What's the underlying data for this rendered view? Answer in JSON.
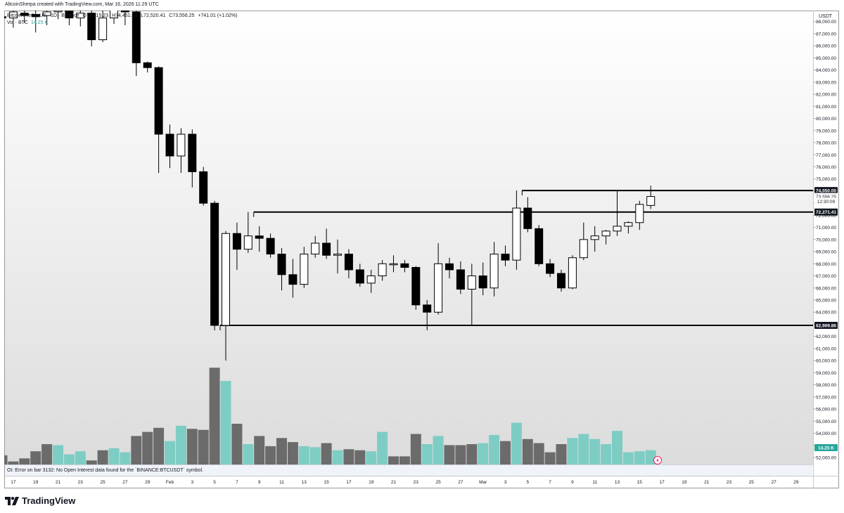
{
  "header": {
    "creator_text": "AltcoinSherpa created with TradingView.com, Mar 16, 2026 11:29 UTC",
    "symbol_text": "Bitcoin / TetherUS · 1D · Binance",
    "ohlc": {
      "open": "O72,815.23",
      "high": "H74,451.03",
      "low": "L72,520.41",
      "close": "C73,556.25",
      "change": "+741.01 (+1.02%)"
    },
    "volume_label": "Vol · BTC",
    "volume_value": "14.25 K"
  },
  "axis": {
    "currency": "USDT"
  },
  "status": {
    "error_text": "OI: Error on bar 3132: No Open Interest data found for the `BINANCE:BTCUSDT` symbol."
  },
  "footer": {
    "brand": "TradingView"
  },
  "colors": {
    "up_body": "#ffffff",
    "down_body": "#000000",
    "volume_up": "#7ecdc4",
    "volume_down": "#6b6b6b",
    "accent_teal": "#26a69a",
    "label_bg": "#131722"
  },
  "chart_data": {
    "type": "candlestick",
    "symbol": "BTCUSDT",
    "interval": "1D",
    "y_axis_ticks": [
      "52,000.00",
      "53,000.00",
      "54,000.00",
      "55,000.00",
      "56,000.00",
      "57,000.00",
      "58,000.00",
      "59,000.00",
      "60,000.00",
      "61,000.00",
      "62,000.00",
      "63,000.00",
      "64,000.00",
      "65,000.00",
      "66,000.00",
      "67,000.00",
      "68,000.00",
      "69,000.00",
      "70,000.00",
      "71,000.00",
      "72,000.00",
      "73,000.00",
      "74,000.00",
      "75,000.00",
      "76,000.00",
      "77,000.00",
      "78,000.00",
      "79,000.00",
      "80,000.00",
      "81,000.00",
      "82,000.00",
      "83,000.00",
      "84,000.00",
      "85,000.00",
      "86,000.00",
      "87,000.00",
      "88,000.00"
    ],
    "x_axis_ticks": [
      "17",
      "19",
      "21",
      "23",
      "25",
      "27",
      "29",
      "Feb",
      "3",
      "5",
      "7",
      "9",
      "11",
      "13",
      "15",
      "17",
      "19",
      "21",
      "23",
      "25",
      "27",
      "Mar",
      "3",
      "5",
      "7",
      "9",
      "11",
      "13",
      "15",
      "17",
      "19",
      "21",
      "23",
      "25",
      "27",
      "29"
    ],
    "price_labels": [
      {
        "text": "74,050.00",
        "value": 74050,
        "style": "line"
      },
      {
        "text": "73,556.25",
        "value": 73556.25,
        "style": "last"
      },
      {
        "text": "12:30:09",
        "value": 73150,
        "style": "countdown"
      },
      {
        "text": "72,271.41",
        "value": 72271.41,
        "style": "line"
      },
      {
        "text": "62,909.86",
        "value": 62909.86,
        "style": "line"
      }
    ],
    "volume_label": "14.25 K",
    "horizontal_lines": [
      {
        "value": 74050,
        "from_day": 47
      },
      {
        "value": 72271.41,
        "from_day": 23
      },
      {
        "value": 62909.86,
        "from_day": 20
      }
    ],
    "candles": [
      {
        "o": 88400,
        "h": 89000,
        "l": 86800,
        "c": 88300
      },
      {
        "o": 88300,
        "h": 89100,
        "l": 87500,
        "c": 88800
      },
      {
        "o": 88700,
        "h": 89300,
        "l": 87900,
        "c": 88500
      },
      {
        "o": 88600,
        "h": 89400,
        "l": 87100,
        "c": 88400
      },
      {
        "o": 88500,
        "h": 89600,
        "l": 87700,
        "c": 88800
      },
      {
        "o": 88800,
        "h": 89500,
        "l": 88200,
        "c": 88900
      },
      {
        "o": 88900,
        "h": 89300,
        "l": 87700,
        "c": 88300
      },
      {
        "o": 88300,
        "h": 89000,
        "l": 87600,
        "c": 88700
      },
      {
        "o": 88700,
        "h": 89200,
        "l": 85950,
        "c": 86500
      },
      {
        "o": 86500,
        "h": 89000,
        "l": 86300,
        "c": 88300
      },
      {
        "o": 88300,
        "h": 89800,
        "l": 87800,
        "c": 89300
      },
      {
        "o": 89000,
        "h": 89700,
        "l": 87700,
        "c": 88800
      },
      {
        "o": 88800,
        "h": 89000,
        "l": 83500,
        "c": 84600
      },
      {
        "o": 84600,
        "h": 84700,
        "l": 83800,
        "c": 84200
      },
      {
        "o": 84200,
        "h": 84300,
        "l": 75500,
        "c": 78700
      },
      {
        "o": 78700,
        "h": 79500,
        "l": 75900,
        "c": 76900
      },
      {
        "o": 76900,
        "h": 79200,
        "l": 75500,
        "c": 78700
      },
      {
        "o": 78700,
        "h": 79100,
        "l": 74300,
        "c": 75600
      },
      {
        "o": 75600,
        "h": 76000,
        "l": 72800,
        "c": 73000
      },
      {
        "o": 73000,
        "h": 73200,
        "l": 62500,
        "c": 62909
      },
      {
        "o": 62909,
        "h": 70700,
        "l": 60000,
        "c": 70500
      },
      {
        "o": 70500,
        "h": 71400,
        "l": 67500,
        "c": 69200
      },
      {
        "o": 69200,
        "h": 72270,
        "l": 68900,
        "c": 70300
      },
      {
        "o": 70300,
        "h": 71100,
        "l": 69000,
        "c": 70100
      },
      {
        "o": 70100,
        "h": 70500,
        "l": 68500,
        "c": 68800
      },
      {
        "o": 68800,
        "h": 69300,
        "l": 65800,
        "c": 67100
      },
      {
        "o": 67100,
        "h": 68400,
        "l": 65200,
        "c": 66300
      },
      {
        "o": 66300,
        "h": 69400,
        "l": 66000,
        "c": 68800
      },
      {
        "o": 68800,
        "h": 70300,
        "l": 68500,
        "c": 69700
      },
      {
        "o": 69700,
        "h": 70900,
        "l": 68400,
        "c": 68700
      },
      {
        "o": 68700,
        "h": 70000,
        "l": 67200,
        "c": 68800
      },
      {
        "o": 68800,
        "h": 69200,
        "l": 66800,
        "c": 67500
      },
      {
        "o": 67500,
        "h": 68000,
        "l": 66100,
        "c": 66400
      },
      {
        "o": 66400,
        "h": 67500,
        "l": 65600,
        "c": 67000
      },
      {
        "o": 67000,
        "h": 68300,
        "l": 66600,
        "c": 68000
      },
      {
        "o": 68000,
        "h": 68700,
        "l": 67300,
        "c": 68000
      },
      {
        "o": 68000,
        "h": 68300,
        "l": 67300,
        "c": 67700
      },
      {
        "o": 67700,
        "h": 67800,
        "l": 64200,
        "c": 64600
      },
      {
        "o": 64600,
        "h": 65000,
        "l": 62500,
        "c": 64000
      },
      {
        "o": 64000,
        "h": 69700,
        "l": 63800,
        "c": 68000
      },
      {
        "o": 68000,
        "h": 68500,
        "l": 66800,
        "c": 67500
      },
      {
        "o": 67500,
        "h": 68200,
        "l": 65500,
        "c": 65900
      },
      {
        "o": 65900,
        "h": 68000,
        "l": 62900,
        "c": 67000
      },
      {
        "o": 67000,
        "h": 68100,
        "l": 65400,
        "c": 66000
      },
      {
        "o": 66000,
        "h": 69800,
        "l": 65300,
        "c": 68800
      },
      {
        "o": 68800,
        "h": 69500,
        "l": 67800,
        "c": 68300
      },
      {
        "o": 68300,
        "h": 74050,
        "l": 67500,
        "c": 72600
      },
      {
        "o": 72600,
        "h": 73500,
        "l": 70600,
        "c": 70900
      },
      {
        "o": 70900,
        "h": 71200,
        "l": 67800,
        "c": 68000
      },
      {
        "o": 68000,
        "h": 68400,
        "l": 66900,
        "c": 67200
      },
      {
        "o": 67200,
        "h": 67500,
        "l": 65700,
        "c": 66000
      },
      {
        "o": 66000,
        "h": 68700,
        "l": 65900,
        "c": 68500
      },
      {
        "o": 68500,
        "h": 71400,
        "l": 68300,
        "c": 70000
      },
      {
        "o": 70000,
        "h": 71100,
        "l": 69000,
        "c": 70300
      },
      {
        "o": 70300,
        "h": 70800,
        "l": 69600,
        "c": 70700
      },
      {
        "o": 70700,
        "h": 74000,
        "l": 70300,
        "c": 71100
      },
      {
        "o": 71100,
        "h": 71500,
        "l": 70500,
        "c": 71400
      },
      {
        "o": 71400,
        "h": 73200,
        "l": 70800,
        "c": 72900
      },
      {
        "o": 72815,
        "h": 74451,
        "l": 72520,
        "c": 73556
      }
    ],
    "volumes": [
      {
        "v": 0.9,
        "up": false
      },
      {
        "v": 0.3,
        "up": false
      },
      {
        "v": 0.6,
        "up": false
      },
      {
        "v": 1.3,
        "up": false
      },
      {
        "v": 2.0,
        "up": false
      },
      {
        "v": 1.9,
        "up": true
      },
      {
        "v": 1.0,
        "up": true
      },
      {
        "v": 1.3,
        "up": true
      },
      {
        "v": 0.4,
        "up": false
      },
      {
        "v": 1.4,
        "up": false
      },
      {
        "v": 1.6,
        "up": true
      },
      {
        "v": 1.2,
        "up": true
      },
      {
        "v": 2.8,
        "up": false
      },
      {
        "v": 3.2,
        "up": false
      },
      {
        "v": 3.6,
        "up": false
      },
      {
        "v": 2.3,
        "up": true
      },
      {
        "v": 3.8,
        "up": true
      },
      {
        "v": 3.5,
        "up": false
      },
      {
        "v": 3.4,
        "up": false
      },
      {
        "v": 9.5,
        "up": false
      },
      {
        "v": 8.2,
        "up": true
      },
      {
        "v": 4.0,
        "up": false
      },
      {
        "v": 2.0,
        "up": true
      },
      {
        "v": 2.8,
        "up": false
      },
      {
        "v": 1.8,
        "up": false
      },
      {
        "v": 2.6,
        "up": false
      },
      {
        "v": 2.2,
        "up": false
      },
      {
        "v": 1.8,
        "up": true
      },
      {
        "v": 1.7,
        "up": true
      },
      {
        "v": 2.1,
        "up": false
      },
      {
        "v": 1.4,
        "up": true
      },
      {
        "v": 1.5,
        "up": false
      },
      {
        "v": 1.4,
        "up": false
      },
      {
        "v": 1.3,
        "up": true
      },
      {
        "v": 3.2,
        "up": true
      },
      {
        "v": 0.8,
        "up": false
      },
      {
        "v": 0.8,
        "up": false
      },
      {
        "v": 3.0,
        "up": false
      },
      {
        "v": 2.0,
        "up": true
      },
      {
        "v": 2.8,
        "up": true
      },
      {
        "v": 1.9,
        "up": false
      },
      {
        "v": 1.9,
        "up": false
      },
      {
        "v": 2.0,
        "up": false
      },
      {
        "v": 2.1,
        "up": true
      },
      {
        "v": 2.9,
        "up": true
      },
      {
        "v": 2.3,
        "up": false
      },
      {
        "v": 4.1,
        "up": true
      },
      {
        "v": 2.5,
        "up": false
      },
      {
        "v": 2.1,
        "up": false
      },
      {
        "v": 1.2,
        "up": false
      },
      {
        "v": 2.0,
        "up": false
      },
      {
        "v": 2.6,
        "up": true
      },
      {
        "v": 3.0,
        "up": true
      },
      {
        "v": 2.5,
        "up": true
      },
      {
        "v": 2.0,
        "up": true
      },
      {
        "v": 3.3,
        "up": true
      },
      {
        "v": 1.2,
        "up": true
      },
      {
        "v": 1.3,
        "up": true
      },
      {
        "v": 1.4,
        "up": true
      }
    ]
  }
}
